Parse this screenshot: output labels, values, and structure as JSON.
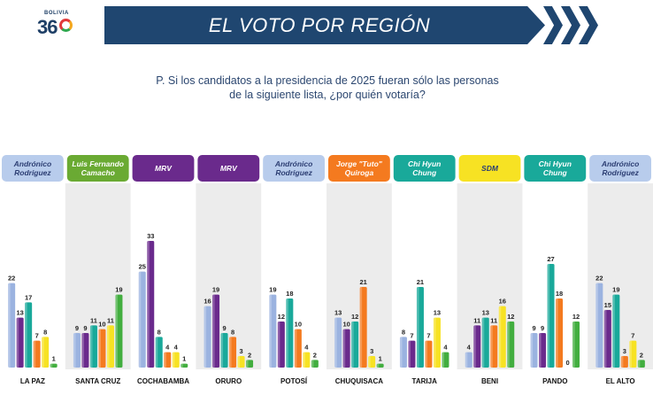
{
  "header": {
    "logo_small": "BOLIVIA",
    "logo_big": "36",
    "title": "EL VOTO POR REGIÓN"
  },
  "question": {
    "line1": "P. Si los candidatos a la presidencia de 2025 fueran sólo las personas",
    "line2": "de la siguiente lista, ¿por quién votaría?"
  },
  "colors": {
    "banner": "#1f4670",
    "series": [
      "#9bb3e0",
      "#6a2a8c",
      "#19a99a",
      "#f47a1f",
      "#f7e223",
      "#42ae3f"
    ]
  },
  "chart_data": {
    "type": "bar",
    "ylim": [
      0,
      35
    ],
    "categories": [
      "LA PAZ",
      "SANTA CRUZ",
      "COCHABAMBA",
      "ORURO",
      "POTOSÍ",
      "CHUQUISACA",
      "TARIJA",
      "BENI",
      "PANDO",
      "EL ALTO"
    ],
    "leaders": [
      {
        "name": "Andrónico Rodriguez",
        "bg": "#b8ccec",
        "fg": "#2c3e73"
      },
      {
        "name": "Luis Fernando Camacho",
        "bg": "#6aaa33",
        "fg": "#ffffff"
      },
      {
        "name": "MRV",
        "bg": "#6a2a8c",
        "fg": "#ffffff"
      },
      {
        "name": "MRV",
        "bg": "#6a2a8c",
        "fg": "#ffffff"
      },
      {
        "name": "Andrónico Rodriguez",
        "bg": "#b8ccec",
        "fg": "#2c3e73"
      },
      {
        "name": "Jorge \"Tuto\" Quiroga",
        "bg": "#f47a1f",
        "fg": "#ffffff"
      },
      {
        "name": "Chi Hyun Chung",
        "bg": "#19a99a",
        "fg": "#ffffff"
      },
      {
        "name": "SDM",
        "bg": "#f7e223",
        "fg": "#2c3e73"
      },
      {
        "name": "Chi Hyun Chung",
        "bg": "#19a99a",
        "fg": "#ffffff"
      },
      {
        "name": "Andrónico Rodriguez",
        "bg": "#b8ccec",
        "fg": "#2c3e73"
      }
    ],
    "values": [
      [
        22,
        13,
        17,
        7,
        8,
        1
      ],
      [
        9,
        9,
        11,
        10,
        11,
        19
      ],
      [
        25,
        33,
        8,
        4,
        4,
        1
      ],
      [
        16,
        19,
        9,
        8,
        3,
        2
      ],
      [
        19,
        12,
        18,
        10,
        4,
        2
      ],
      [
        13,
        10,
        12,
        21,
        3,
        1
      ],
      [
        8,
        7,
        21,
        7,
        13,
        4
      ],
      [
        4,
        11,
        13,
        11,
        16,
        12
      ],
      [
        9,
        9,
        27,
        18,
        0,
        12
      ],
      [
        22,
        15,
        19,
        3,
        7,
        2
      ]
    ]
  }
}
